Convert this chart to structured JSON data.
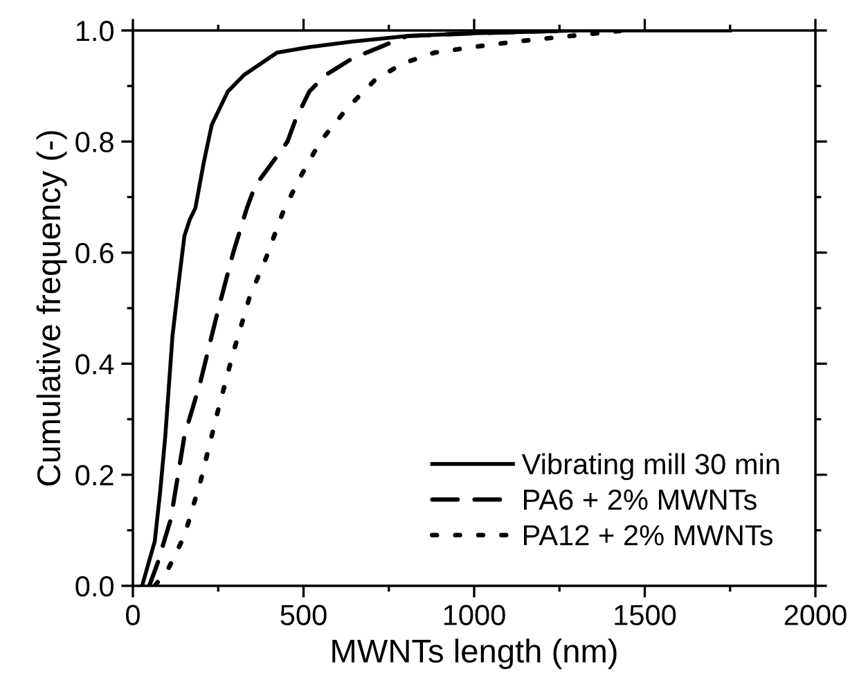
{
  "chart_data": {
    "type": "line",
    "xlabel": "MWNTs length (nm)",
    "ylabel": "Cumulative frequency (-)",
    "xlim": [
      0,
      2000
    ],
    "ylim": [
      0,
      1.0
    ],
    "xticks": [
      0,
      500,
      1000,
      1500,
      2000
    ],
    "yticks": [
      {
        "value": 0,
        "label": "0.0"
      },
      {
        "value": 0.2,
        "label": "0.2"
      },
      {
        "value": 0.4,
        "label": "0.4"
      },
      {
        "value": 0.6,
        "label": "0.6"
      },
      {
        "value": 0.8,
        "label": "0.8"
      },
      {
        "value": 1.0,
        "label": "1.0"
      }
    ],
    "grid": false,
    "legend": "bottom right",
    "series": [
      {
        "name": "Vibrating mill 30 min",
        "color": "#000000",
        "line_style": "solid",
        "x": [
          27,
          64,
          80,
          95,
          116,
          135,
          151,
          167,
          183,
          207,
          231,
          278,
          326,
          374,
          422,
          517,
          644,
          803,
          1000,
          1300,
          1750
        ],
        "values": [
          0,
          0.08,
          0.17,
          0.27,
          0.45,
          0.55,
          0.63,
          0.66,
          0.68,
          0.76,
          0.83,
          0.89,
          0.92,
          0.94,
          0.96,
          0.97,
          0.98,
          0.99,
          0.995,
          1.0,
          1.0
        ]
      },
      {
        "name": "PA6 + 2% MWNTs",
        "color": "#000000",
        "line_style": "dashed",
        "x": [
          48,
          72,
          111,
          151,
          199,
          247,
          294,
          334,
          358,
          406,
          453,
          477,
          517,
          565,
          644,
          724,
          803,
          1000,
          1300
        ],
        "values": [
          0,
          0.04,
          0.12,
          0.27,
          0.37,
          0.49,
          0.6,
          0.68,
          0.72,
          0.76,
          0.8,
          0.84,
          0.89,
          0.92,
          0.95,
          0.97,
          0.99,
          0.995,
          1.0
        ]
      },
      {
        "name": "PA12 + 2% MWNTs",
        "color": "#000000",
        "line_style": "dotted",
        "x": [
          64,
          103,
          151,
          199,
          247,
          294,
          342,
          390,
          438,
          485,
          549,
          628,
          708,
          788,
          883,
          994,
          1122,
          1281,
          1360,
          1440
        ],
        "values": [
          0,
          0.03,
          0.09,
          0.19,
          0.31,
          0.42,
          0.52,
          0.59,
          0.67,
          0.73,
          0.8,
          0.86,
          0.91,
          0.94,
          0.96,
          0.97,
          0.98,
          0.99,
          0.995,
          1.0
        ]
      }
    ]
  }
}
